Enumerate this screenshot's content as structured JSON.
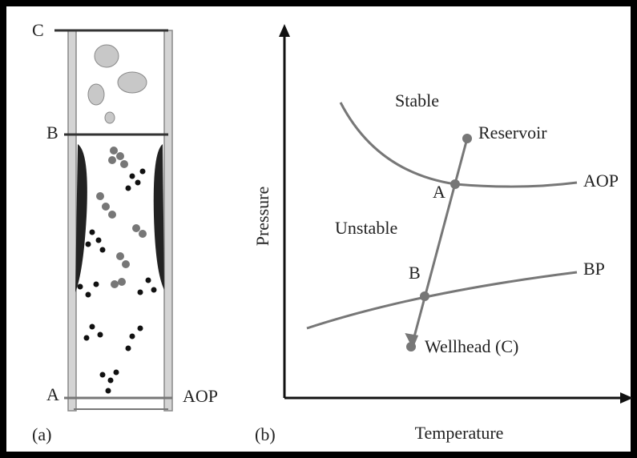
{
  "panel_a": {
    "labels": {
      "c": "C",
      "b": "B",
      "a": "A",
      "aop": "AOP"
    },
    "caption": "(a)"
  },
  "panel_b": {
    "labels": {
      "stable": "Stable",
      "reservoir": "Reservoir",
      "aop": "AOP",
      "a": "A",
      "unstable": "Unstable",
      "b": "B",
      "bp": "BP",
      "wellhead": "Wellhead (C)"
    },
    "y_axis_label": "Pressure",
    "x_axis_label": "Temperature",
    "caption": "(b)"
  }
}
